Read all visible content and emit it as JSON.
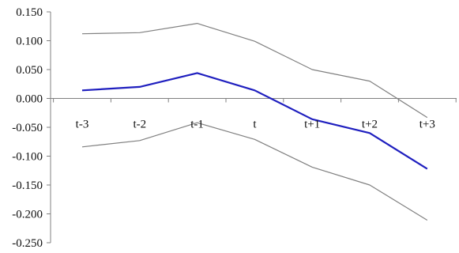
{
  "chart_data": {
    "type": "line",
    "title": "",
    "xlabel": "",
    "ylabel": "",
    "categories": [
      "t-3",
      "t-2",
      "t-1",
      "t",
      "t+1",
      "t+2",
      "t+3"
    ],
    "ylim": [
      -0.25,
      0.15
    ],
    "y_ticks": [
      0.15,
      0.1,
      0.05,
      0.0,
      -0.05,
      -0.1,
      -0.15,
      -0.2,
      -0.25
    ],
    "y_tick_labels": [
      "0.150",
      "0.100",
      "0.050",
      "0.000",
      "-0.050",
      "-0.100",
      "-0.150",
      "-0.200",
      "-0.250"
    ],
    "grid": false,
    "legend": "none",
    "category_labels_position": "just below the zero line",
    "series": [
      {
        "role": "upper",
        "color": "#808080",
        "values": [
          0.112,
          0.114,
          0.13,
          0.099,
          0.05,
          0.03,
          -0.033
        ]
      },
      {
        "role": "main",
        "color": "#1f1fbf",
        "values": [
          0.014,
          0.02,
          0.044,
          0.014,
          -0.036,
          -0.06,
          -0.122
        ]
      },
      {
        "role": "lower",
        "color": "#808080",
        "values": [
          -0.084,
          -0.073,
          -0.042,
          -0.071,
          -0.119,
          -0.15,
          -0.211
        ]
      }
    ]
  }
}
